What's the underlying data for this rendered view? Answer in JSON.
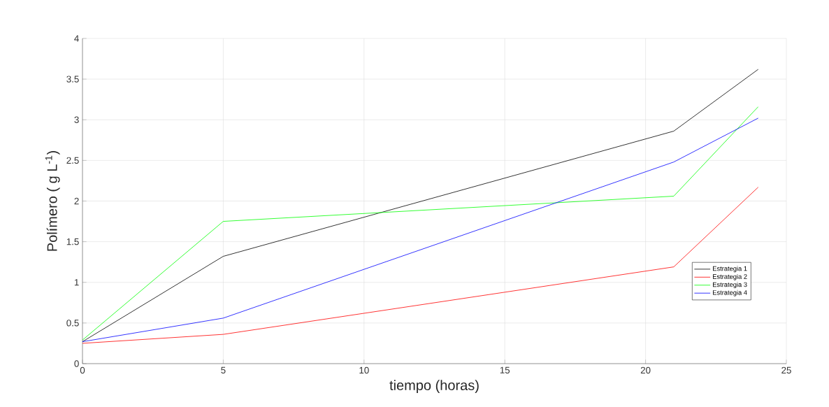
{
  "chart_data": {
    "type": "line",
    "xlabel": "tiempo (horas)",
    "ylabel": "Polímero ( g L$^{-1}$)",
    "x": [
      0,
      5,
      21,
      24
    ],
    "series": [
      {
        "name": "Estrategia 1",
        "color": "#000000",
        "values": [
          0.27,
          1.32,
          2.86,
          3.62
        ]
      },
      {
        "name": "Estrategia 2",
        "color": "#ff0000",
        "values": [
          0.25,
          0.36,
          1.19,
          2.17
        ]
      },
      {
        "name": "Estrategia 3",
        "color": "#00ff00",
        "values": [
          0.29,
          1.75,
          2.06,
          3.16
        ]
      },
      {
        "name": "Estrategia 4",
        "color": "#0000ff",
        "values": [
          0.27,
          0.56,
          2.48,
          3.02
        ]
      }
    ],
    "xlim": [
      0,
      25
    ],
    "ylim": [
      0,
      4
    ],
    "xticks": [
      0,
      5,
      10,
      15,
      20,
      25
    ],
    "yticks": [
      0,
      0.5,
      1,
      1.5,
      2,
      2.5,
      3,
      3.5,
      4
    ],
    "grid": true,
    "legend": "bottom right"
  }
}
